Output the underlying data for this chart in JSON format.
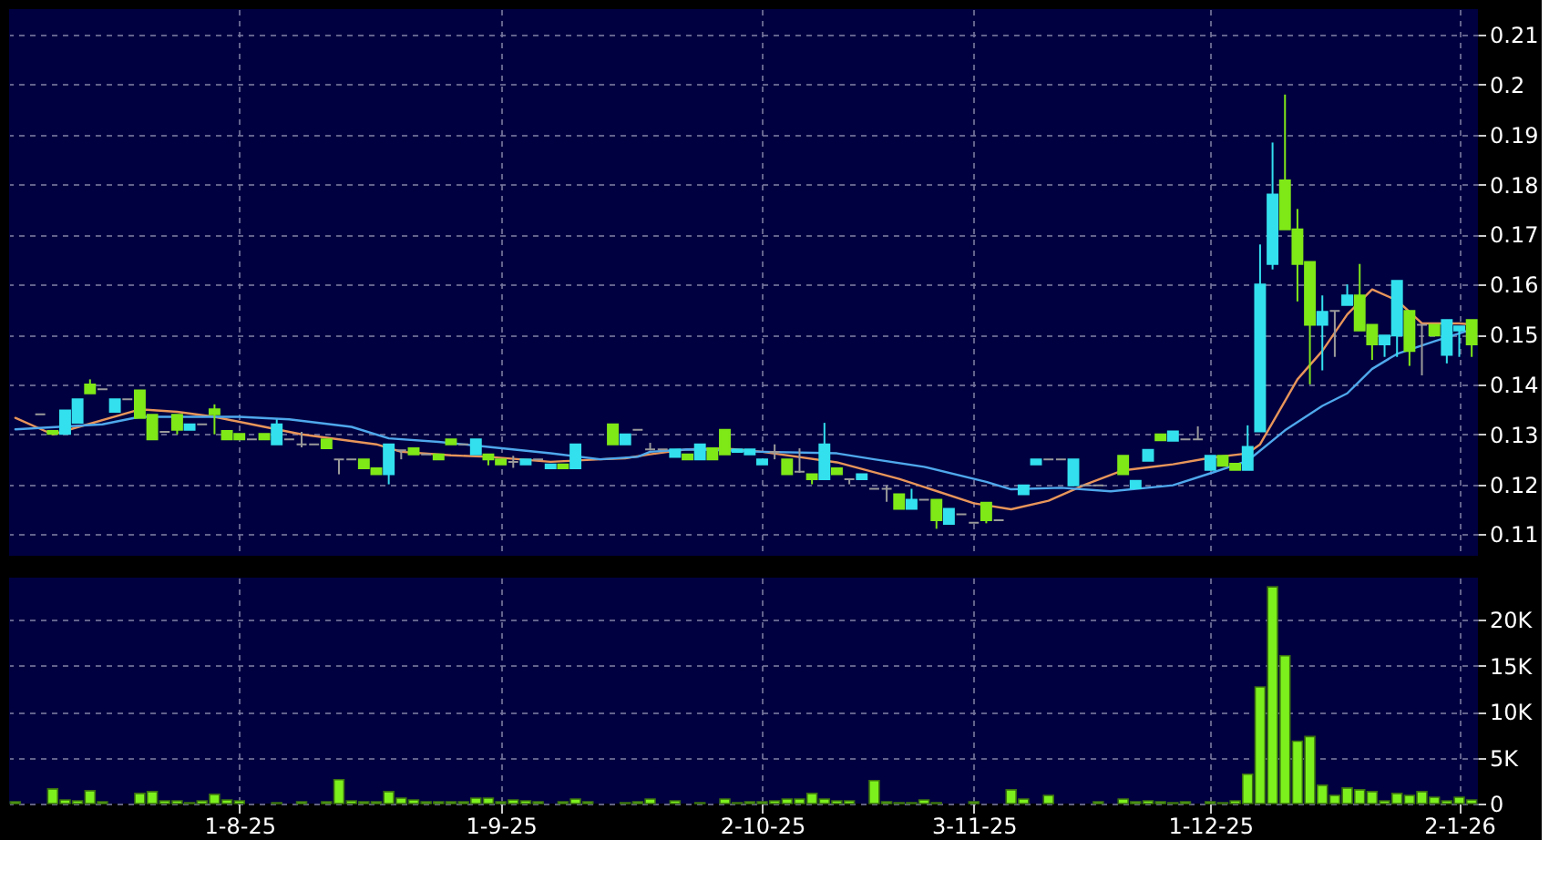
{
  "chart_data": [
    {
      "type": "candlestick",
      "ohlc": [
        null,
        null,
        [
          0.134,
          0.134,
          0.134,
          0.134
        ],
        [
          0.1307,
          0.1307,
          0.1301,
          0.1301
        ],
        [
          0.1301,
          0.1348,
          0.1301,
          0.1348
        ],
        [
          0.1323,
          0.137,
          0.1323,
          0.137
        ],
        [
          0.14,
          0.141,
          0.1382,
          0.1382
        ],
        [
          0.139,
          0.139,
          0.139,
          0.139
        ],
        [
          0.1345,
          0.137,
          0.1345,
          0.137
        ],
        [
          0.137,
          0.137,
          0.137,
          0.137
        ],
        [
          0.1388,
          0.1388,
          0.1333,
          0.1333
        ],
        [
          0.1339,
          0.1339,
          0.129,
          0.129
        ],
        [
          0.1305,
          0.1305,
          0.1305,
          0.1305
        ],
        [
          0.1339,
          0.1339,
          0.13,
          0.1309
        ],
        [
          0.1309,
          0.132,
          0.1309,
          0.132
        ],
        [
          0.132,
          0.132,
          0.132,
          0.132
        ],
        [
          0.135,
          0.136,
          0.13,
          0.134
        ],
        [
          0.1307,
          0.1307,
          0.129,
          0.129
        ],
        [
          0.1301,
          0.1301,
          0.129,
          0.129
        ],
        [
          0.129,
          0.129,
          0.129,
          0.129
        ],
        [
          0.1301,
          0.1301,
          0.129,
          0.129
        ],
        [
          0.128,
          0.133,
          0.128,
          0.132
        ],
        [
          0.129,
          0.129,
          0.129,
          0.129
        ],
        [
          0.128,
          0.1305,
          0.1274,
          0.128
        ],
        [
          0.128,
          0.128,
          0.128,
          0.128
        ],
        [
          0.129,
          0.129,
          0.1272,
          0.1272
        ],
        [
          0.125,
          0.125,
          0.122,
          0.125
        ],
        [
          0.125,
          0.125,
          0.125,
          0.125
        ],
        [
          0.125,
          0.125,
          0.1232,
          0.1232
        ],
        [
          0.1232,
          0.1232,
          0.122,
          0.122
        ],
        [
          0.122,
          0.128,
          0.12,
          0.128
        ],
        [
          0.1268,
          0.1268,
          0.125,
          0.1268
        ],
        [
          0.1272,
          0.1272,
          0.126,
          0.126
        ],
        [
          0.126,
          0.126,
          0.126,
          0.126
        ],
        [
          0.126,
          0.126,
          0.125,
          0.125
        ],
        [
          0.129,
          0.129,
          0.128,
          0.128
        ],
        [
          0.128,
          0.128,
          0.128,
          0.128
        ],
        [
          0.126,
          0.129,
          0.126,
          0.129
        ],
        [
          0.126,
          0.126,
          0.1238,
          0.125
        ],
        [
          0.125,
          0.125,
          0.124,
          0.124
        ],
        [
          0.1245,
          0.1257,
          0.1233,
          0.1245
        ],
        [
          0.124,
          0.125,
          0.124,
          0.125
        ],
        [
          0.125,
          0.125,
          0.125,
          0.125
        ],
        [
          0.1232,
          0.124,
          0.1232,
          0.124
        ],
        [
          0.124,
          0.124,
          0.1232,
          0.1232
        ],
        [
          0.1232,
          0.128,
          0.1232,
          0.128
        ],
        null,
        null,
        [
          0.132,
          0.132,
          0.128,
          0.128
        ],
        [
          0.128,
          0.13,
          0.128,
          0.13
        ],
        [
          0.1309,
          0.1309,
          0.1309,
          0.1309
        ],
        [
          0.127,
          0.1283,
          0.1268,
          0.127
        ],
        [
          0.127,
          0.127,
          0.127,
          0.127
        ],
        [
          0.1255,
          0.127,
          0.1255,
          0.127
        ],
        [
          0.126,
          0.126,
          0.125,
          0.125
        ],
        [
          0.125,
          0.128,
          0.125,
          0.128
        ],
        [
          0.1272,
          0.1272,
          0.125,
          0.125
        ],
        [
          0.1309,
          0.1309,
          0.126,
          0.126
        ],
        [
          0.1265,
          0.127,
          0.1265,
          0.127
        ],
        [
          0.126,
          0.127,
          0.126,
          0.127
        ],
        [
          0.124,
          0.125,
          0.124,
          0.125
        ],
        [
          0.1265,
          0.128,
          0.125,
          0.1265
        ],
        [
          0.125,
          0.125,
          0.122,
          0.122
        ],
        [
          0.1225,
          0.1272,
          0.1223,
          0.1225
        ],
        [
          0.122,
          0.122,
          0.12,
          0.121
        ],
        [
          0.121,
          0.1323,
          0.121,
          0.128
        ],
        [
          0.1232,
          0.1232,
          0.122,
          0.122
        ],
        [
          0.121,
          0.121,
          0.12,
          0.121
        ],
        [
          0.121,
          0.122,
          0.121,
          0.122
        ],
        [
          0.1191,
          0.1191,
          0.1191,
          0.1191
        ],
        [
          0.1191,
          0.1198,
          0.1165,
          0.1191
        ],
        [
          0.118,
          0.118,
          0.1151,
          0.1151
        ],
        [
          0.1151,
          0.1191,
          0.1151,
          0.1169
        ],
        [
          0.1169,
          0.1169,
          0.1169,
          0.1169
        ],
        [
          0.1169,
          0.1169,
          0.1111,
          0.1128
        ],
        [
          0.1121,
          0.1151,
          0.1121,
          0.1151
        ],
        [
          0.114,
          0.114,
          0.114,
          0.114
        ],
        [
          0.1123,
          0.1123,
          0.1123,
          0.1123
        ],
        [
          0.1163,
          0.1163,
          0.1122,
          0.1128
        ],
        [
          0.1128,
          0.1128,
          0.1128,
          0.1128
        ],
        null,
        [
          0.118,
          0.1198,
          0.118,
          0.1198
        ],
        [
          0.124,
          0.125,
          0.124,
          0.125
        ],
        [
          0.125,
          0.125,
          0.125,
          0.125
        ],
        [
          0.125,
          0.125,
          0.125,
          0.125
        ],
        [
          0.1198,
          0.125,
          0.1198,
          0.125
        ],
        [
          0.1198,
          0.1198,
          0.1198,
          0.1198
        ],
        [
          0.1198,
          0.1198,
          0.1198,
          0.1198
        ],
        null,
        [
          0.1257,
          0.1257,
          0.122,
          0.122
        ],
        [
          0.1192,
          0.1207,
          0.1192,
          0.1207
        ],
        [
          0.1247,
          0.1269,
          0.1247,
          0.1269
        ],
        [
          0.13,
          0.13,
          0.1288,
          0.1288
        ],
        [
          0.1287,
          0.1306,
          0.1287,
          0.1306
        ],
        [
          0.129,
          0.129,
          0.129,
          0.129
        ],
        [
          0.129,
          0.1316,
          0.129,
          0.129
        ],
        [
          0.1229,
          0.1257,
          0.1229,
          0.1257
        ],
        [
          0.1257,
          0.1257,
          0.1237,
          0.1237
        ],
        [
          0.1241,
          0.1241,
          0.1229,
          0.1229
        ],
        [
          0.1229,
          0.1318,
          0.1229,
          0.1275
        ],
        [
          0.1306,
          0.168,
          0.1306,
          0.16
        ],
        [
          0.1641,
          0.1884,
          0.163,
          0.178
        ],
        [
          0.1808,
          0.198,
          0.171,
          0.171
        ],
        [
          0.171,
          0.1751,
          0.1566,
          0.1641
        ],
        [
          0.1645,
          0.1645,
          0.14,
          0.1519
        ],
        [
          0.1519,
          0.1578,
          0.1428,
          0.1545
        ],
        [
          0.1547,
          0.1547,
          0.1455,
          0.1547
        ],
        [
          0.1559,
          0.16,
          0.1559,
          0.1578
        ],
        [
          0.1578,
          0.1641,
          0.1508,
          0.1508
        ],
        [
          0.1519,
          0.1519,
          0.1449,
          0.148
        ],
        [
          0.148,
          0.1498,
          0.1455,
          0.1498
        ],
        [
          0.1498,
          0.1607,
          0.1455,
          0.1607
        ],
        [
          0.1547,
          0.1547,
          0.1437,
          0.1467
        ],
        [
          0.1519,
          0.1519,
          0.1418,
          0.1519
        ],
        [
          0.1519,
          0.1519,
          0.1498,
          0.1498
        ],
        [
          0.1459,
          0.1529,
          0.1442,
          0.1529
        ],
        [
          0.1508,
          0.1516,
          0.1455,
          0.1516
        ],
        [
          0.1529,
          0.1529,
          0.1455,
          0.148
        ]
      ],
      "colors": [
        null,
        null,
        "#9a9a9a",
        "#7fe817",
        "#33e0ee",
        "#33e0ee",
        "#7fe817",
        "#9a9a9a",
        "#33e0ee",
        "#9a9a9a",
        "#7fe817",
        "#7fe817",
        "#9a9a9a",
        "#7fe817",
        "#33e0ee",
        "#9a9a9a",
        "#7fe817",
        "#7fe817",
        "#7fe817",
        "#9a9a9a",
        "#7fe817",
        "#33e0ee",
        "#9a9a9a",
        "#9a9a9a",
        "#9a9a9a",
        "#7fe817",
        "#9a9a9a",
        "#9a9a9a",
        "#7fe817",
        "#7fe817",
        "#33e0ee",
        "#9a9a9a",
        "#7fe817",
        "#9a9a9a",
        "#7fe817",
        "#7fe817",
        "#9a9a9a",
        "#33e0ee",
        "#7fe817",
        "#7fe817",
        "#9a9a9a",
        "#33e0ee",
        "#9a9a9a",
        "#33e0ee",
        "#7fe817",
        "#33e0ee",
        null,
        null,
        "#7fe817",
        "#33e0ee",
        "#9a9a9a",
        "#9a9a9a",
        "#9a9a9a",
        "#33e0ee",
        "#7fe817",
        "#33e0ee",
        "#7fe817",
        "#7fe817",
        "#33e0ee",
        "#33e0ee",
        "#33e0ee",
        "#9a9a9a",
        "#7fe817",
        "#9a9a9a",
        "#7fe817",
        "#33e0ee",
        "#7fe817",
        "#9a9a9a",
        "#33e0ee",
        "#9a9a9a",
        "#9a9a9a",
        "#7fe817",
        "#33e0ee",
        "#9a9a9a",
        "#7fe817",
        "#33e0ee",
        "#9a9a9a",
        "#9a9a9a",
        "#7fe817",
        "#9a9a9a",
        null,
        "#33e0ee",
        "#33e0ee",
        "#9a9a9a",
        "#9a9a9a",
        "#33e0ee",
        "#9a9a9a",
        "#9a9a9a",
        null,
        "#7fe817",
        "#33e0ee",
        "#33e0ee",
        "#7fe817",
        "#33e0ee",
        "#9a9a9a",
        "#9a9a9a",
        "#33e0ee",
        "#7fe817",
        "#7fe817",
        "#33e0ee",
        "#33e0ee",
        "#33e0ee",
        "#7fe817",
        "#7fe817",
        "#7fe817",
        "#33e0ee",
        "#9a9a9a",
        "#33e0ee",
        "#7fe817",
        "#7fe817",
        "#33e0ee",
        "#33e0ee",
        "#7fe817",
        "#9a9a9a",
        "#7fe817",
        "#33e0ee",
        "#33e0ee",
        "#7fe817"
      ],
      "series": [
        {
          "type": "line",
          "color": "#e8955a",
          "values": [
            0.1333,
            null,
            null,
            0.13,
            null,
            null,
            null,
            null,
            null,
            null,
            0.135,
            null,
            null,
            0.1345,
            null,
            null,
            0.1335,
            null,
            null,
            0.132,
            null,
            null,
            null,
            0.13,
            null,
            null,
            null,
            null,
            null,
            0.128,
            null,
            0.1265,
            null,
            null,
            null,
            0.1258,
            null,
            null,
            0.1255,
            null,
            null,
            null,
            null,
            0.1245,
            null,
            null,
            null,
            0.125,
            null,
            0.1252,
            null,
            0.126,
            null,
            null,
            0.127,
            null,
            null,
            0.1272,
            null,
            null,
            0.1265,
            null,
            null,
            null,
            null,
            null,
            0.1244,
            null,
            null,
            null,
            null,
            0.1211,
            null,
            null,
            null,
            null,
            null,
            0.1162,
            null,
            null,
            0.115,
            null,
            null,
            0.1167,
            null,
            null,
            0.12,
            null,
            null,
            0.1228,
            null,
            null,
            null,
            0.124,
            null,
            null,
            0.1253,
            null,
            null,
            0.1262,
            0.128,
            null,
            null,
            0.141,
            null,
            0.1467,
            null,
            0.154,
            null,
            0.159,
            null,
            0.1568,
            null,
            0.1522,
            null,
            null,
            0.1522,
            0.152
          ]
        },
        {
          "type": "line",
          "color": "#4fa8ec",
          "values": [
            0.131,
            null,
            null,
            null,
            null,
            null,
            null,
            0.132,
            null,
            null,
            0.1335,
            null,
            null,
            null,
            null,
            null,
            null,
            null,
            0.1335,
            null,
            null,
            null,
            0.133,
            null,
            null,
            null,
            null,
            0.1315,
            null,
            null,
            0.1292,
            null,
            null,
            null,
            0.1285,
            null,
            null,
            null,
            0.1275,
            null,
            null,
            null,
            null,
            0.1262,
            null,
            null,
            null,
            0.125,
            null,
            null,
            0.1255,
            0.1265,
            null,
            null,
            0.127,
            null,
            null,
            0.1268,
            null,
            null,
            0.1265,
            null,
            null,
            null,
            null,
            null,
            0.1262,
            null,
            null,
            0.125,
            null,
            null,
            null,
            0.1235,
            null,
            null,
            null,
            null,
            0.1205,
            null,
            0.119,
            null,
            null,
            null,
            0.1193,
            null,
            null,
            null,
            0.1186,
            null,
            null,
            null,
            null,
            0.1198,
            null,
            null,
            0.1222,
            null,
            null,
            0.1247,
            null,
            null,
            0.1308,
            null,
            null,
            0.1357,
            null,
            0.1382,
            null,
            0.1431,
            null,
            0.1461,
            null,
            null,
            0.1486,
            null,
            null,
            0.151
          ]
        }
      ],
      "ylim": [
        0.1057,
        0.2151
      ],
      "yticks": [
        0.11,
        0.12,
        0.13,
        0.14,
        0.15,
        0.16,
        0.17,
        0.18,
        0.19,
        0.2,
        0.21
      ],
      "grid": true,
      "tick_labels": "y"
    },
    {
      "type": "bar",
      "categories": [
        null,
        null,
        null,
        null,
        null,
        null,
        null,
        null,
        null,
        null,
        null,
        null,
        null,
        null,
        null,
        null,
        null,
        null,
        "1-8-25",
        null,
        null,
        null,
        null,
        null,
        null,
        null,
        null,
        null,
        null,
        null,
        null,
        null,
        null,
        null,
        null,
        null,
        null,
        null,
        null,
        "1-9-25",
        null,
        null,
        null,
        null,
        null,
        null,
        null,
        null,
        null,
        null,
        null,
        null,
        null,
        null,
        null,
        null,
        null,
        null,
        null,
        null,
        "2-10-25",
        null,
        null,
        null,
        null,
        null,
        null,
        null,
        null,
        null,
        null,
        null,
        null,
        null,
        null,
        null,
        null,
        "3-11-25",
        null,
        null,
        null,
        null,
        null,
        null,
        null,
        null,
        null,
        null,
        null,
        null,
        null,
        null,
        null,
        null,
        null,
        null,
        "1-12-25",
        null,
        null,
        null,
        null,
        null,
        null,
        null,
        null,
        null,
        null,
        null,
        null,
        null,
        null,
        null,
        null,
        null,
        null,
        null,
        "2-1-26",
        null
      ],
      "values": [
        200,
        null,
        null,
        1600,
        400,
        300,
        1400,
        200,
        null,
        null,
        1100,
        1300,
        300,
        300,
        100,
        300,
        1000,
        400,
        300,
        null,
        null,
        100,
        null,
        200,
        null,
        200,
        2600,
        300,
        200,
        200,
        1300,
        600,
        400,
        200,
        200,
        200,
        200,
        600,
        600,
        200,
        400,
        300,
        200,
        null,
        200,
        500,
        200,
        null,
        null,
        100,
        200,
        500,
        null,
        300,
        null,
        100,
        null,
        500,
        100,
        200,
        200,
        300,
        500,
        500,
        1100,
        500,
        300,
        300,
        null,
        2500,
        200,
        100,
        100,
        400,
        100,
        null,
        null,
        200,
        null,
        null,
        1500,
        500,
        null,
        900,
        null,
        null,
        null,
        200,
        null,
        500,
        200,
        300,
        200,
        100,
        200,
        null,
        200,
        100,
        300,
        3200,
        12700,
        23600,
        16100,
        6800,
        7300,
        2000,
        900,
        1700,
        1500,
        1300,
        300,
        1100,
        900,
        1300,
        700,
        300,
        700,
        400
      ],
      "color": "#7cf01c",
      "ylim": [
        0,
        24600
      ],
      "yticks": [
        {
          "value": 0,
          "label": "0"
        },
        {
          "value": 5000,
          "label": "5K"
        },
        {
          "value": 10000,
          "label": "10K"
        },
        {
          "value": 15000,
          "label": "15K"
        },
        {
          "value": 20000,
          "label": "20K"
        }
      ],
      "grid": true
    }
  ]
}
